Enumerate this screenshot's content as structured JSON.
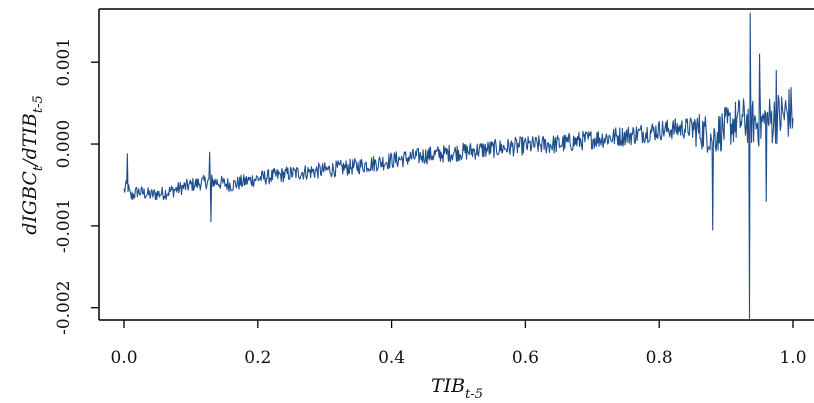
{
  "chart_data": {
    "type": "line",
    "title": "",
    "xlabel": {
      "base": "TIB",
      "sub": "t-5"
    },
    "ylabel": {
      "part1": "dIGBC",
      "sub1": "t",
      "part2": "/dTIB",
      "sub2": "t-5"
    },
    "xlim": [
      0.0,
      1.0
    ],
    "ylim": [
      -0.00215,
      0.00165
    ],
    "xticks": [
      0.0,
      0.2,
      0.4,
      0.6,
      0.8,
      1.0
    ],
    "xtick_labels": [
      "0.0",
      "0.2",
      "0.4",
      "0.6",
      "0.8",
      "1.0"
    ],
    "yticks": [
      -0.002,
      -0.001,
      0.0,
      0.001
    ],
    "ytick_labels": [
      "-0.002",
      "-0.001",
      "0.000",
      "0.001"
    ],
    "line_color": "#1f4e8c",
    "grid": false,
    "series": [
      {
        "values": [
          {
            "x": 0.0,
            "y": -0.00057
          },
          {
            "x": 0.005,
            "y": -0.0005
          },
          {
            "x": 0.01,
            "y": -0.00065
          },
          {
            "x": 0.02,
            "y": -0.00058
          },
          {
            "x": 0.04,
            "y": -0.00062
          },
          {
            "x": 0.06,
            "y": -0.0006
          },
          {
            "x": 0.08,
            "y": -0.00055
          },
          {
            "x": 0.1,
            "y": -0.0005
          },
          {
            "x": 0.13,
            "y": -0.00045
          },
          {
            "x": 0.16,
            "y": -0.0005
          },
          {
            "x": 0.2,
            "y": -0.00042
          },
          {
            "x": 0.25,
            "y": -0.00036
          },
          {
            "x": 0.3,
            "y": -0.00032
          },
          {
            "x": 0.35,
            "y": -0.00027
          },
          {
            "x": 0.4,
            "y": -0.0002
          },
          {
            "x": 0.45,
            "y": -0.00014
          },
          {
            "x": 0.5,
            "y": -0.0001
          },
          {
            "x": 0.55,
            "y": -6e-05
          },
          {
            "x": 0.6,
            "y": -2e-05
          },
          {
            "x": 0.65,
            "y": 0.0
          },
          {
            "x": 0.7,
            "y": 6e-05
          },
          {
            "x": 0.75,
            "y": 0.0001
          },
          {
            "x": 0.8,
            "y": 0.00017
          },
          {
            "x": 0.85,
            "y": 0.0002
          },
          {
            "x": 0.88,
            "y": 0.0001
          },
          {
            "x": 0.9,
            "y": 0.0002
          },
          {
            "x": 0.92,
            "y": 0.0003
          },
          {
            "x": 0.95,
            "y": 0.00025
          },
          {
            "x": 0.97,
            "y": 0.0003
          },
          {
            "x": 1.0,
            "y": 0.0004
          }
        ],
        "spikes": [
          {
            "x": 0.005,
            "y": -0.00012
          },
          {
            "x": 0.13,
            "y": -0.00095
          },
          {
            "x": 0.128,
            "y": -0.0001
          },
          {
            "x": 0.88,
            "y": -0.00105
          },
          {
            "x": 0.935,
            "y": -0.00213
          },
          {
            "x": 0.936,
            "y": 0.0016
          },
          {
            "x": 0.95,
            "y": 0.0011
          },
          {
            "x": 0.96,
            "y": -0.0007
          },
          {
            "x": 0.975,
            "y": 0.0009
          }
        ]
      }
    ]
  }
}
